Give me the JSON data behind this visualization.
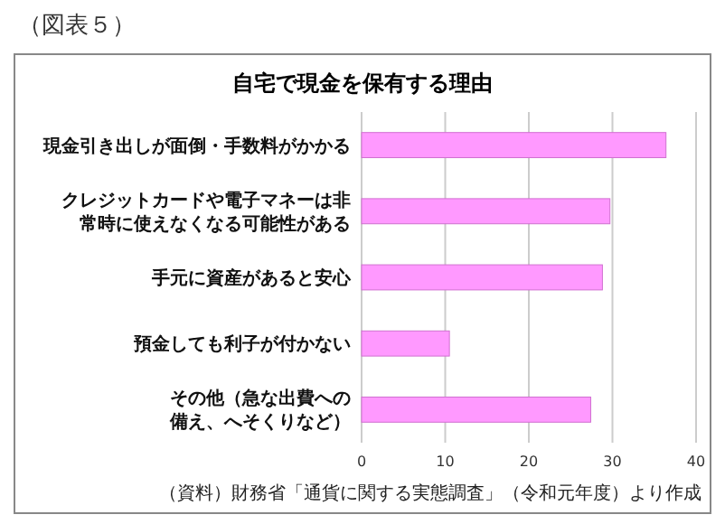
{
  "chart_data": {
    "type": "bar",
    "orientation": "horizontal",
    "title": "自宅で現金を保有する理由",
    "categories": [
      "現金引き出しが面倒・手数料がかかる",
      "クレジットカードや電子マネーは非常時に使えなくなる可能性がある",
      "手元に資産があると安心",
      "預金しても利子が付かない",
      "その他（急な出費への備え、へそくりなど）"
    ],
    "values": [
      36.4,
      29.7,
      28.8,
      10.5,
      27.4
    ],
    "color": "#ff99ff",
    "xlim": [
      0,
      40
    ],
    "xticks": [
      0,
      10,
      20,
      30,
      40
    ],
    "grid": "x",
    "annotations": [
      "（図表５）",
      "（資料）財務省「通貨に関する実態調査」（令和元年度）より作成"
    ]
  }
}
